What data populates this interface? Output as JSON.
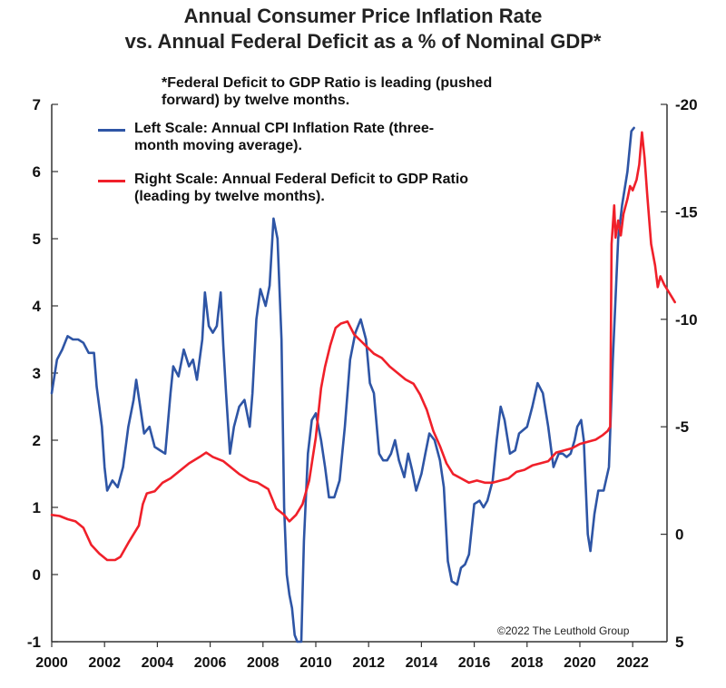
{
  "chart_data": {
    "type": "line",
    "title": [
      "Annual Consumer Price Inflation Rate",
      "vs. Annual Federal Deficit as a % of Nominal GDP*"
    ],
    "note": [
      "*Federal Deficit to GDP Ratio is leading (pushed",
      "forward) by twelve months."
    ],
    "copyright": "©2022 The Leuthold Group",
    "x_ticks": [
      "2000",
      "2002",
      "2004",
      "2006",
      "2008",
      "2010",
      "2012",
      "2014",
      "2016",
      "2018",
      "2020",
      "2022"
    ],
    "xlim": [
      2000,
      2023.3
    ],
    "left_axis": {
      "ylim": [
        -1,
        7
      ],
      "ticks": [
        "-1",
        "0",
        "1",
        "2",
        "3",
        "4",
        "5",
        "6",
        "7"
      ]
    },
    "right_axis": {
      "ylim": [
        5,
        -20
      ],
      "inverted": true,
      "ticks": [
        "5",
        "0",
        "-5",
        "-10",
        "-15",
        "-20"
      ]
    },
    "legend_placement": "top-left",
    "grid": false,
    "series": [
      {
        "name": "Left Scale: Annual CPI Inflation Rate (three-month moving average).",
        "legend_lines": [
          "Left Scale: Annual CPI Inflation Rate (three-",
          "month moving average)."
        ],
        "axis": "left",
        "color": "#2E55A5",
        "points": [
          [
            2000.0,
            2.7
          ],
          [
            2000.2,
            3.2
          ],
          [
            2000.4,
            3.35
          ],
          [
            2000.6,
            3.55
          ],
          [
            2000.8,
            3.5
          ],
          [
            2001.0,
            3.5
          ],
          [
            2001.2,
            3.45
          ],
          [
            2001.4,
            3.3
          ],
          [
            2001.6,
            3.3
          ],
          [
            2001.7,
            2.8
          ],
          [
            2001.9,
            2.2
          ],
          [
            2002.0,
            1.6
          ],
          [
            2002.1,
            1.25
          ],
          [
            2002.3,
            1.4
          ],
          [
            2002.5,
            1.3
          ],
          [
            2002.7,
            1.6
          ],
          [
            2002.9,
            2.2
          ],
          [
            2003.1,
            2.6
          ],
          [
            2003.2,
            2.9
          ],
          [
            2003.35,
            2.5
          ],
          [
            2003.5,
            2.1
          ],
          [
            2003.7,
            2.2
          ],
          [
            2003.9,
            1.9
          ],
          [
            2004.1,
            1.85
          ],
          [
            2004.3,
            1.8
          ],
          [
            2004.5,
            2.7
          ],
          [
            2004.6,
            3.1
          ],
          [
            2004.8,
            2.95
          ],
          [
            2005.0,
            3.35
          ],
          [
            2005.2,
            3.1
          ],
          [
            2005.35,
            3.2
          ],
          [
            2005.5,
            2.9
          ],
          [
            2005.7,
            3.5
          ],
          [
            2005.8,
            4.2
          ],
          [
            2005.95,
            3.7
          ],
          [
            2006.1,
            3.6
          ],
          [
            2006.25,
            3.7
          ],
          [
            2006.4,
            4.2
          ],
          [
            2006.5,
            3.4
          ],
          [
            2006.6,
            2.7
          ],
          [
            2006.75,
            1.8
          ],
          [
            2006.9,
            2.2
          ],
          [
            2007.1,
            2.5
          ],
          [
            2007.3,
            2.6
          ],
          [
            2007.5,
            2.2
          ],
          [
            2007.6,
            2.7
          ],
          [
            2007.75,
            3.8
          ],
          [
            2007.9,
            4.25
          ],
          [
            2008.1,
            4.0
          ],
          [
            2008.25,
            4.3
          ],
          [
            2008.4,
            5.3
          ],
          [
            2008.55,
            5.0
          ],
          [
            2008.7,
            3.5
          ],
          [
            2008.8,
            1.0
          ],
          [
            2008.9,
            0.0
          ],
          [
            2009.0,
            -0.3
          ],
          [
            2009.1,
            -0.5
          ],
          [
            2009.2,
            -0.9
          ],
          [
            2009.3,
            -1.0
          ],
          [
            2009.45,
            -1.0
          ],
          [
            2009.55,
            0.5
          ],
          [
            2009.7,
            1.8
          ],
          [
            2009.85,
            2.3
          ],
          [
            2010.0,
            2.4
          ],
          [
            2010.2,
            2.0
          ],
          [
            2010.35,
            1.6
          ],
          [
            2010.5,
            1.15
          ],
          [
            2010.7,
            1.15
          ],
          [
            2010.9,
            1.4
          ],
          [
            2011.1,
            2.2
          ],
          [
            2011.3,
            3.2
          ],
          [
            2011.5,
            3.6
          ],
          [
            2011.7,
            3.8
          ],
          [
            2011.9,
            3.5
          ],
          [
            2012.05,
            2.85
          ],
          [
            2012.2,
            2.7
          ],
          [
            2012.4,
            1.8
          ],
          [
            2012.55,
            1.7
          ],
          [
            2012.7,
            1.7
          ],
          [
            2012.85,
            1.8
          ],
          [
            2013.0,
            2.0
          ],
          [
            2013.15,
            1.7
          ],
          [
            2013.35,
            1.45
          ],
          [
            2013.5,
            1.8
          ],
          [
            2013.65,
            1.55
          ],
          [
            2013.8,
            1.25
          ],
          [
            2014.0,
            1.5
          ],
          [
            2014.15,
            1.8
          ],
          [
            2014.3,
            2.1
          ],
          [
            2014.5,
            2.0
          ],
          [
            2014.7,
            1.7
          ],
          [
            2014.85,
            1.3
          ],
          [
            2015.0,
            0.2
          ],
          [
            2015.15,
            -0.1
          ],
          [
            2015.35,
            -0.15
          ],
          [
            2015.5,
            0.1
          ],
          [
            2015.65,
            0.15
          ],
          [
            2015.8,
            0.3
          ],
          [
            2016.0,
            1.05
          ],
          [
            2016.2,
            1.1
          ],
          [
            2016.35,
            1.0
          ],
          [
            2016.5,
            1.1
          ],
          [
            2016.7,
            1.4
          ],
          [
            2016.85,
            2.0
          ],
          [
            2017.0,
            2.5
          ],
          [
            2017.15,
            2.3
          ],
          [
            2017.35,
            1.8
          ],
          [
            2017.55,
            1.85
          ],
          [
            2017.7,
            2.1
          ],
          [
            2017.85,
            2.15
          ],
          [
            2018.0,
            2.2
          ],
          [
            2018.2,
            2.5
          ],
          [
            2018.4,
            2.85
          ],
          [
            2018.6,
            2.7
          ],
          [
            2018.8,
            2.2
          ],
          [
            2019.0,
            1.6
          ],
          [
            2019.2,
            1.8
          ],
          [
            2019.35,
            1.8
          ],
          [
            2019.5,
            1.75
          ],
          [
            2019.65,
            1.8
          ],
          [
            2019.8,
            2.0
          ],
          [
            2019.9,
            2.2
          ],
          [
            2020.05,
            2.3
          ],
          [
            2020.15,
            2.0
          ],
          [
            2020.3,
            0.6
          ],
          [
            2020.4,
            0.35
          ],
          [
            2020.55,
            0.9
          ],
          [
            2020.7,
            1.25
          ],
          [
            2020.9,
            1.25
          ],
          [
            2021.1,
            1.6
          ],
          [
            2021.25,
            3.2
          ],
          [
            2021.45,
            5.0
          ],
          [
            2021.6,
            5.5
          ],
          [
            2021.8,
            6.0
          ],
          [
            2021.95,
            6.6
          ],
          [
            2022.05,
            6.65
          ]
        ]
      },
      {
        "name": "Right Scale: Annual Federal Deficit to GDP Ratio (leading by twelve months).",
        "legend_lines": [
          "Right Scale: Annual Federal Deficit to GDP Ratio",
          "(leading by twelve months)."
        ],
        "axis": "right",
        "color": "#F0202A",
        "points": [
          [
            2000.0,
            -0.9
          ],
          [
            2000.3,
            -0.85
          ],
          [
            2000.6,
            -0.7
          ],
          [
            2000.9,
            -0.6
          ],
          [
            2001.2,
            -0.3
          ],
          [
            2001.5,
            0.5
          ],
          [
            2001.8,
            0.9
          ],
          [
            2002.1,
            1.2
          ],
          [
            2002.4,
            1.2
          ],
          [
            2002.6,
            1.05
          ],
          [
            2002.9,
            0.4
          ],
          [
            2003.1,
            0.0
          ],
          [
            2003.3,
            -0.4
          ],
          [
            2003.45,
            -1.4
          ],
          [
            2003.6,
            -1.9
          ],
          [
            2003.9,
            -2.0
          ],
          [
            2004.2,
            -2.4
          ],
          [
            2004.5,
            -2.6
          ],
          [
            2004.8,
            -2.9
          ],
          [
            2005.2,
            -3.3
          ],
          [
            2005.6,
            -3.6
          ],
          [
            2005.85,
            -3.8
          ],
          [
            2006.1,
            -3.6
          ],
          [
            2006.5,
            -3.4
          ],
          [
            2006.8,
            -3.1
          ],
          [
            2007.1,
            -2.8
          ],
          [
            2007.5,
            -2.5
          ],
          [
            2007.8,
            -2.4
          ],
          [
            2008.2,
            -2.1
          ],
          [
            2008.5,
            -1.2
          ],
          [
            2008.8,
            -0.9
          ],
          [
            2009.0,
            -0.6
          ],
          [
            2009.25,
            -0.9
          ],
          [
            2009.5,
            -1.4
          ],
          [
            2009.75,
            -2.5
          ],
          [
            2010.0,
            -4.5
          ],
          [
            2010.2,
            -6.8
          ],
          [
            2010.35,
            -7.8
          ],
          [
            2010.55,
            -8.8
          ],
          [
            2010.75,
            -9.6
          ],
          [
            2010.95,
            -9.8
          ],
          [
            2011.2,
            -9.9
          ],
          [
            2011.45,
            -9.3
          ],
          [
            2011.7,
            -9.0
          ],
          [
            2011.95,
            -8.7
          ],
          [
            2012.2,
            -8.4
          ],
          [
            2012.5,
            -8.2
          ],
          [
            2012.8,
            -7.8
          ],
          [
            2013.1,
            -7.5
          ],
          [
            2013.4,
            -7.2
          ],
          [
            2013.7,
            -7.0
          ],
          [
            2013.95,
            -6.5
          ],
          [
            2014.2,
            -5.8
          ],
          [
            2014.45,
            -4.8
          ],
          [
            2014.7,
            -4.1
          ],
          [
            2014.95,
            -3.3
          ],
          [
            2015.2,
            -2.8
          ],
          [
            2015.5,
            -2.6
          ],
          [
            2015.8,
            -2.4
          ],
          [
            2016.1,
            -2.5
          ],
          [
            2016.4,
            -2.4
          ],
          [
            2016.7,
            -2.4
          ],
          [
            2017.0,
            -2.5
          ],
          [
            2017.3,
            -2.6
          ],
          [
            2017.6,
            -2.9
          ],
          [
            2017.9,
            -3.0
          ],
          [
            2018.2,
            -3.2
          ],
          [
            2018.5,
            -3.3
          ],
          [
            2018.8,
            -3.4
          ],
          [
            2019.1,
            -3.8
          ],
          [
            2019.4,
            -3.9
          ],
          [
            2019.7,
            -4.0
          ],
          [
            2020.0,
            -4.2
          ],
          [
            2020.3,
            -4.3
          ],
          [
            2020.6,
            -4.4
          ],
          [
            2020.85,
            -4.6
          ],
          [
            2021.05,
            -4.8
          ],
          [
            2021.15,
            -5.0
          ],
          [
            2021.2,
            -13.5
          ],
          [
            2021.3,
            -15.3
          ],
          [
            2021.35,
            -13.8
          ],
          [
            2021.45,
            -14.6
          ],
          [
            2021.55,
            -13.9
          ],
          [
            2021.65,
            -14.9
          ],
          [
            2021.8,
            -15.6
          ],
          [
            2021.9,
            -16.2
          ],
          [
            2022.0,
            -16.0
          ],
          [
            2022.15,
            -16.5
          ],
          [
            2022.25,
            -17.2
          ],
          [
            2022.35,
            -18.7
          ],
          [
            2022.45,
            -17.5
          ],
          [
            2022.55,
            -15.8
          ],
          [
            2022.7,
            -13.5
          ],
          [
            2022.85,
            -12.5
          ],
          [
            2022.95,
            -11.5
          ],
          [
            2023.05,
            -12.0
          ],
          [
            2023.2,
            -11.6
          ],
          [
            2023.35,
            -11.3
          ],
          [
            2023.5,
            -11.0
          ],
          [
            2023.6,
            -10.8
          ]
        ]
      }
    ]
  }
}
